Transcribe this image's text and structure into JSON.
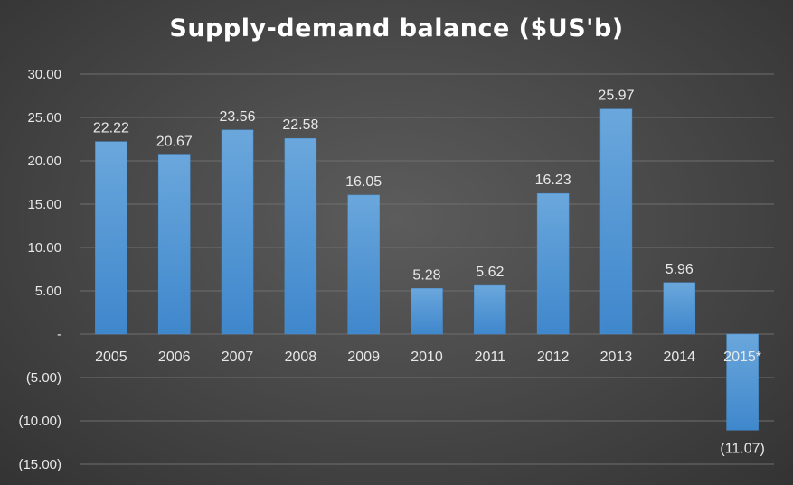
{
  "chart_data": {
    "type": "bar",
    "title": "Supply-demand balance ($US'b)",
    "categories": [
      "2005",
      "2006",
      "2007",
      "2008",
      "2009",
      "2010",
      "2011",
      "2012",
      "2013",
      "2014",
      "2015*"
    ],
    "values": [
      22.22,
      20.67,
      23.56,
      22.58,
      16.05,
      5.28,
      5.62,
      16.23,
      25.97,
      5.96,
      -11.07
    ],
    "data_labels": [
      "22.22",
      "20.67",
      "23.56",
      "22.58",
      "16.05",
      "5.28",
      "5.62",
      "16.23",
      "25.97",
      "5.96",
      "(11.07)"
    ],
    "ylim": [
      -15,
      30
    ],
    "yticks": [
      30,
      25,
      20,
      15,
      10,
      5,
      0,
      -5,
      -10,
      -15
    ],
    "ytick_labels": [
      "30.00",
      "25.00",
      "20.00",
      "15.00",
      "10.00",
      "5.00",
      "-",
      "(5.00)",
      "(10.00)",
      "(15.00)"
    ],
    "grid": true,
    "legend": "none",
    "colors": {
      "bar": "#5b9bd5",
      "bar_dark": "#2e75b6",
      "grid": "#6e6e6e",
      "text": "#e8e8e8",
      "title": "#ffffff"
    }
  }
}
